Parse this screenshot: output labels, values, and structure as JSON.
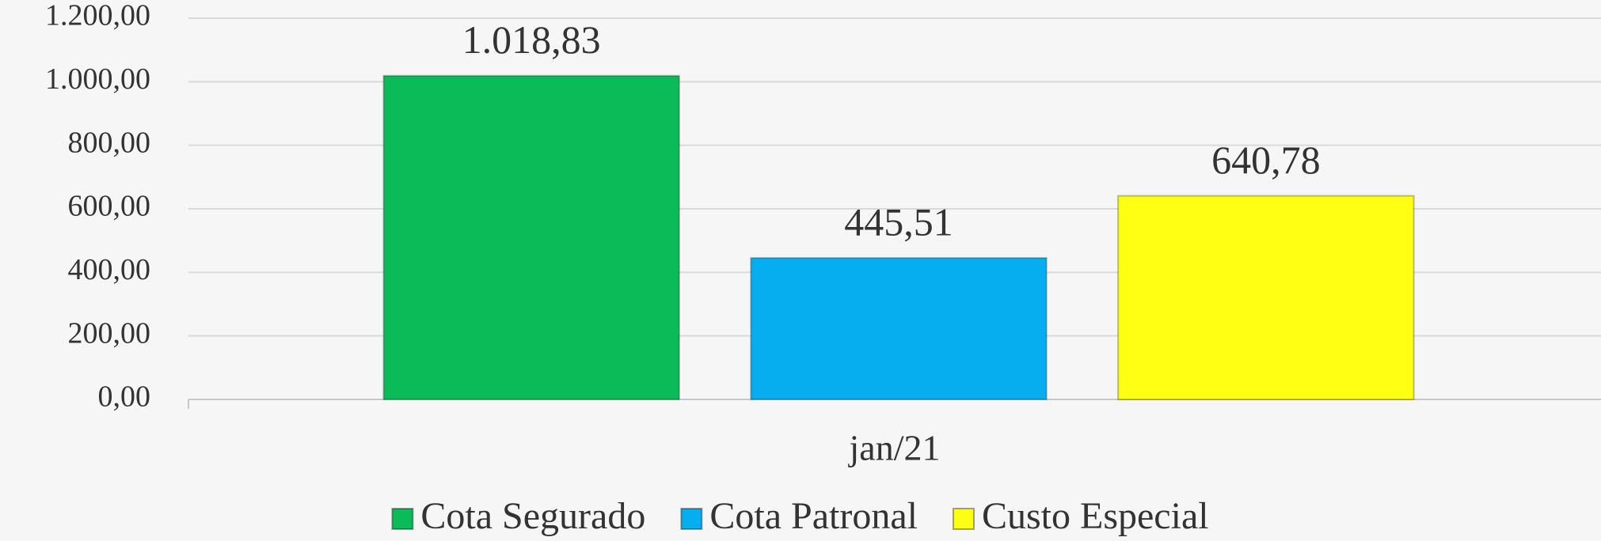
{
  "chart_data": {
    "type": "bar",
    "categories": [
      "jan/21"
    ],
    "series": [
      {
        "name": "Cota Segurado",
        "color": "#0bbb57",
        "values": [
          1018.83
        ],
        "value_labels": [
          "1.018,83"
        ]
      },
      {
        "name": "Cota Patronal",
        "color": "#07aeef",
        "values": [
          445.51
        ],
        "value_labels": [
          "445,51"
        ]
      },
      {
        "name": "Custo Especial",
        "color": "#ffff14",
        "values": [
          640.78
        ],
        "value_labels": [
          "640,78"
        ]
      }
    ],
    "ylim": [
      0,
      1200
    ],
    "yticks": [
      {
        "value": 0,
        "label": "0,00"
      },
      {
        "value": 200,
        "label": "200,00"
      },
      {
        "value": 400,
        "label": "400,00"
      },
      {
        "value": 600,
        "label": "600,00"
      },
      {
        "value": 800,
        "label": "800,00"
      },
      {
        "value": 1000,
        "label": "1.000,00"
      },
      {
        "value": 1200,
        "label": "1.200,00"
      }
    ],
    "grid": true,
    "legend": "bottom"
  }
}
